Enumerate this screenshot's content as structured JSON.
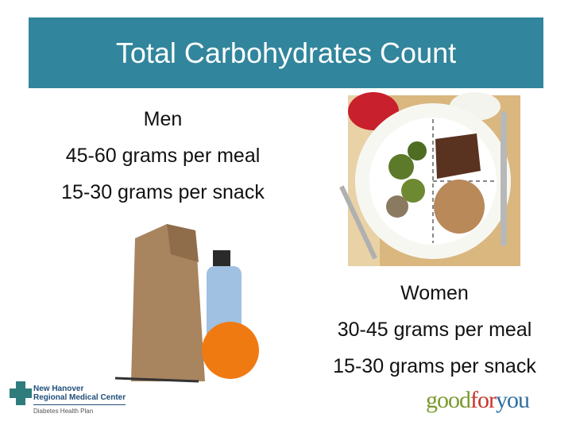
{
  "header": {
    "title": "Total Carbohydrates Count"
  },
  "men": {
    "heading": "Men",
    "lines": [
      "45-60 grams per meal",
      "15-30 grams per snack"
    ]
  },
  "women": {
    "heading": "Women",
    "lines": [
      "30-45 grams per meal",
      "15-30 grams per snack"
    ]
  },
  "logos": {
    "hospital": [
      "New Hanover",
      "Regional Medical Center",
      "Diabetes Health Plan"
    ],
    "brand": [
      "good",
      "for",
      "you"
    ]
  }
}
